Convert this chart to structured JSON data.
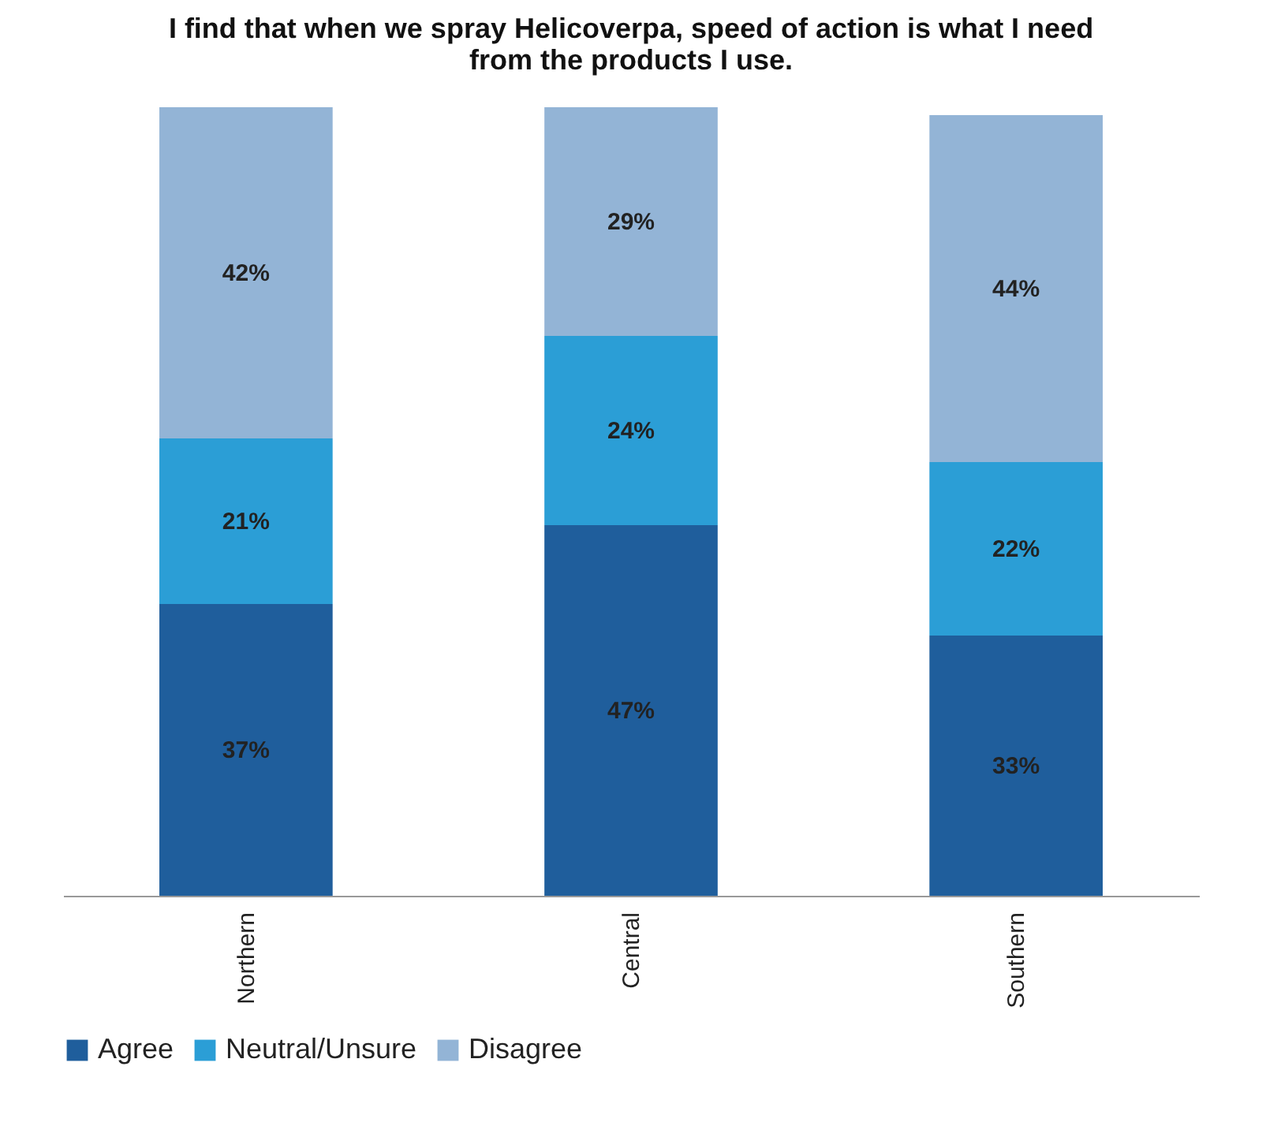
{
  "chart_data": {
    "type": "bar",
    "stacked": true,
    "title": "I find that when we spray Helicoverpa, speed of action is what I need from the products I use.",
    "categories": [
      "Northern",
      "Central",
      "Southern"
    ],
    "series": [
      {
        "name": "Agree",
        "color": "#1f5e9c",
        "values": [
          37,
          47,
          33
        ],
        "value_labels": [
          "37%",
          "47%",
          "33%"
        ]
      },
      {
        "name": "Neutral/Unsure",
        "color": "#2b9ed6",
        "values": [
          21,
          24,
          22
        ],
        "value_labels": [
          "21%",
          "24%",
          "22%"
        ]
      },
      {
        "name": "Disagree",
        "color": "#93b4d6",
        "values": [
          42,
          29,
          44
        ],
        "value_labels": [
          "42%",
          "29%",
          "44%"
        ]
      }
    ],
    "legend": "bottom",
    "grid": false
  }
}
